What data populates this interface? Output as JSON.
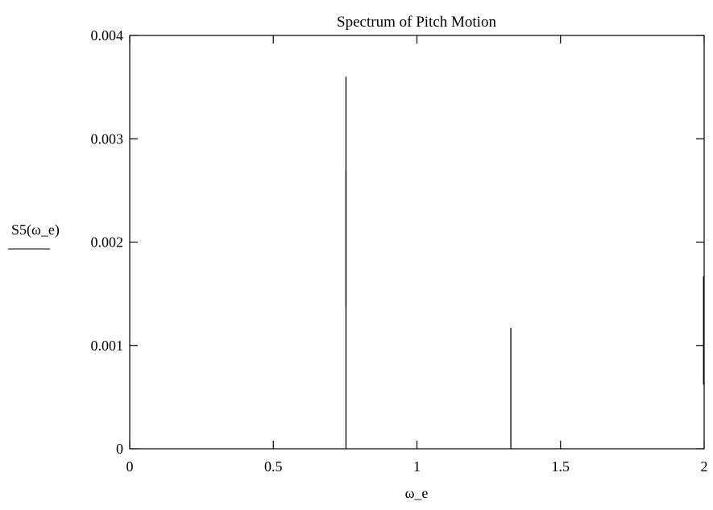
{
  "chart_data": {
    "type": "line",
    "title": "Spectrum of Pitch Motion",
    "xlabel": "ω_e",
    "ylabel": "S5(ω_e)",
    "xlim": [
      0,
      2
    ],
    "ylim": [
      0,
      0.004
    ],
    "x_ticks": [
      {
        "value": 0,
        "label": "0"
      },
      {
        "value": 0.5,
        "label": "0.5"
      },
      {
        "value": 1,
        "label": "1"
      },
      {
        "value": 1.5,
        "label": "1.5"
      },
      {
        "value": 2,
        "label": "2"
      }
    ],
    "y_ticks": [
      {
        "value": 0,
        "label": "0"
      },
      {
        "value": 0.001,
        "label": "0.001"
      },
      {
        "value": 0.002,
        "label": "0.002"
      },
      {
        "value": 0.003,
        "label": "0.003"
      },
      {
        "value": 0.004,
        "label": "0.004"
      }
    ],
    "series": [
      {
        "color": "#000000",
        "segments": [
          {
            "x": 0.753,
            "y0": 0,
            "y1": 0.0036
          },
          {
            "x": 0.753,
            "y0": 0.00138,
            "y1": 0.00268
          },
          {
            "x": 1.327,
            "y0": 0,
            "y1": 0.00117
          },
          {
            "x": 1.998,
            "y0": 0.00062,
            "y1": 0.00167
          }
        ]
      }
    ],
    "grid": false
  }
}
